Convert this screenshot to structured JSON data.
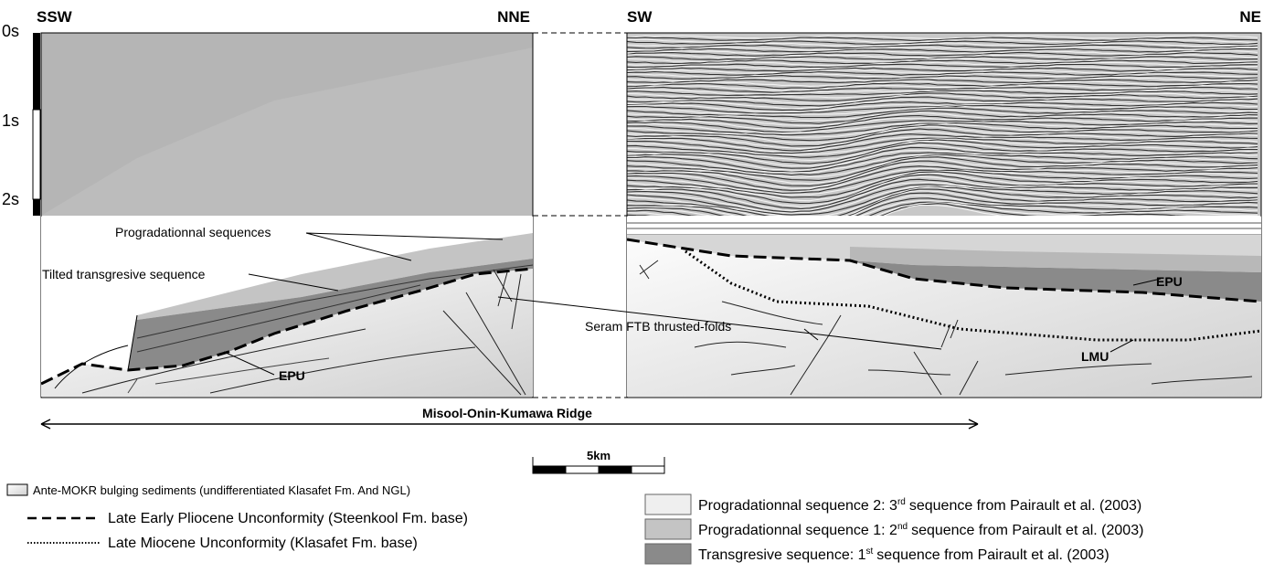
{
  "left_panel": {
    "orientation_left": "SSW",
    "orientation_right": "NNE",
    "time_labels": [
      "0s",
      "1s",
      "2s"
    ],
    "annotations": {
      "progradational": "Progradationnal sequences",
      "tilted": "Tilted transgresive sequence",
      "epu": "EPU",
      "seram": "Seram FTB thrusted-folds"
    }
  },
  "right_panel": {
    "orientation_left": "SW",
    "orientation_right": "NE",
    "annotations": {
      "epu": "EPU",
      "lmu": "LMU"
    }
  },
  "ridge_label": "Misool-Onin-Kumawa Ridge",
  "scale_label": "5km",
  "legend": {
    "ante": "Ante-MOKR bulging sediments (undifferentiated Klasafet Fm. And NGL)",
    "lepu": "Late Early Pliocene Unconformity (Steenkool Fm. base)",
    "lmu": "Late Miocene Unconformity (Klasafet Fm. base)",
    "sequences": [
      {
        "text": "Progradationnal sequence 2: 3",
        "sup": "rd",
        "rest": "sequence from Pairault et al. (2003)"
      },
      {
        "text": "Progradationnal sequence 1: 2",
        "sup": "nd",
        "rest": "sequence from Pairault et al. (2003)"
      },
      {
        "text": "Transgresive sequence: 1",
        "sup": "st",
        "rest": "sequence from Pairault et al. (2003)"
      }
    ]
  }
}
